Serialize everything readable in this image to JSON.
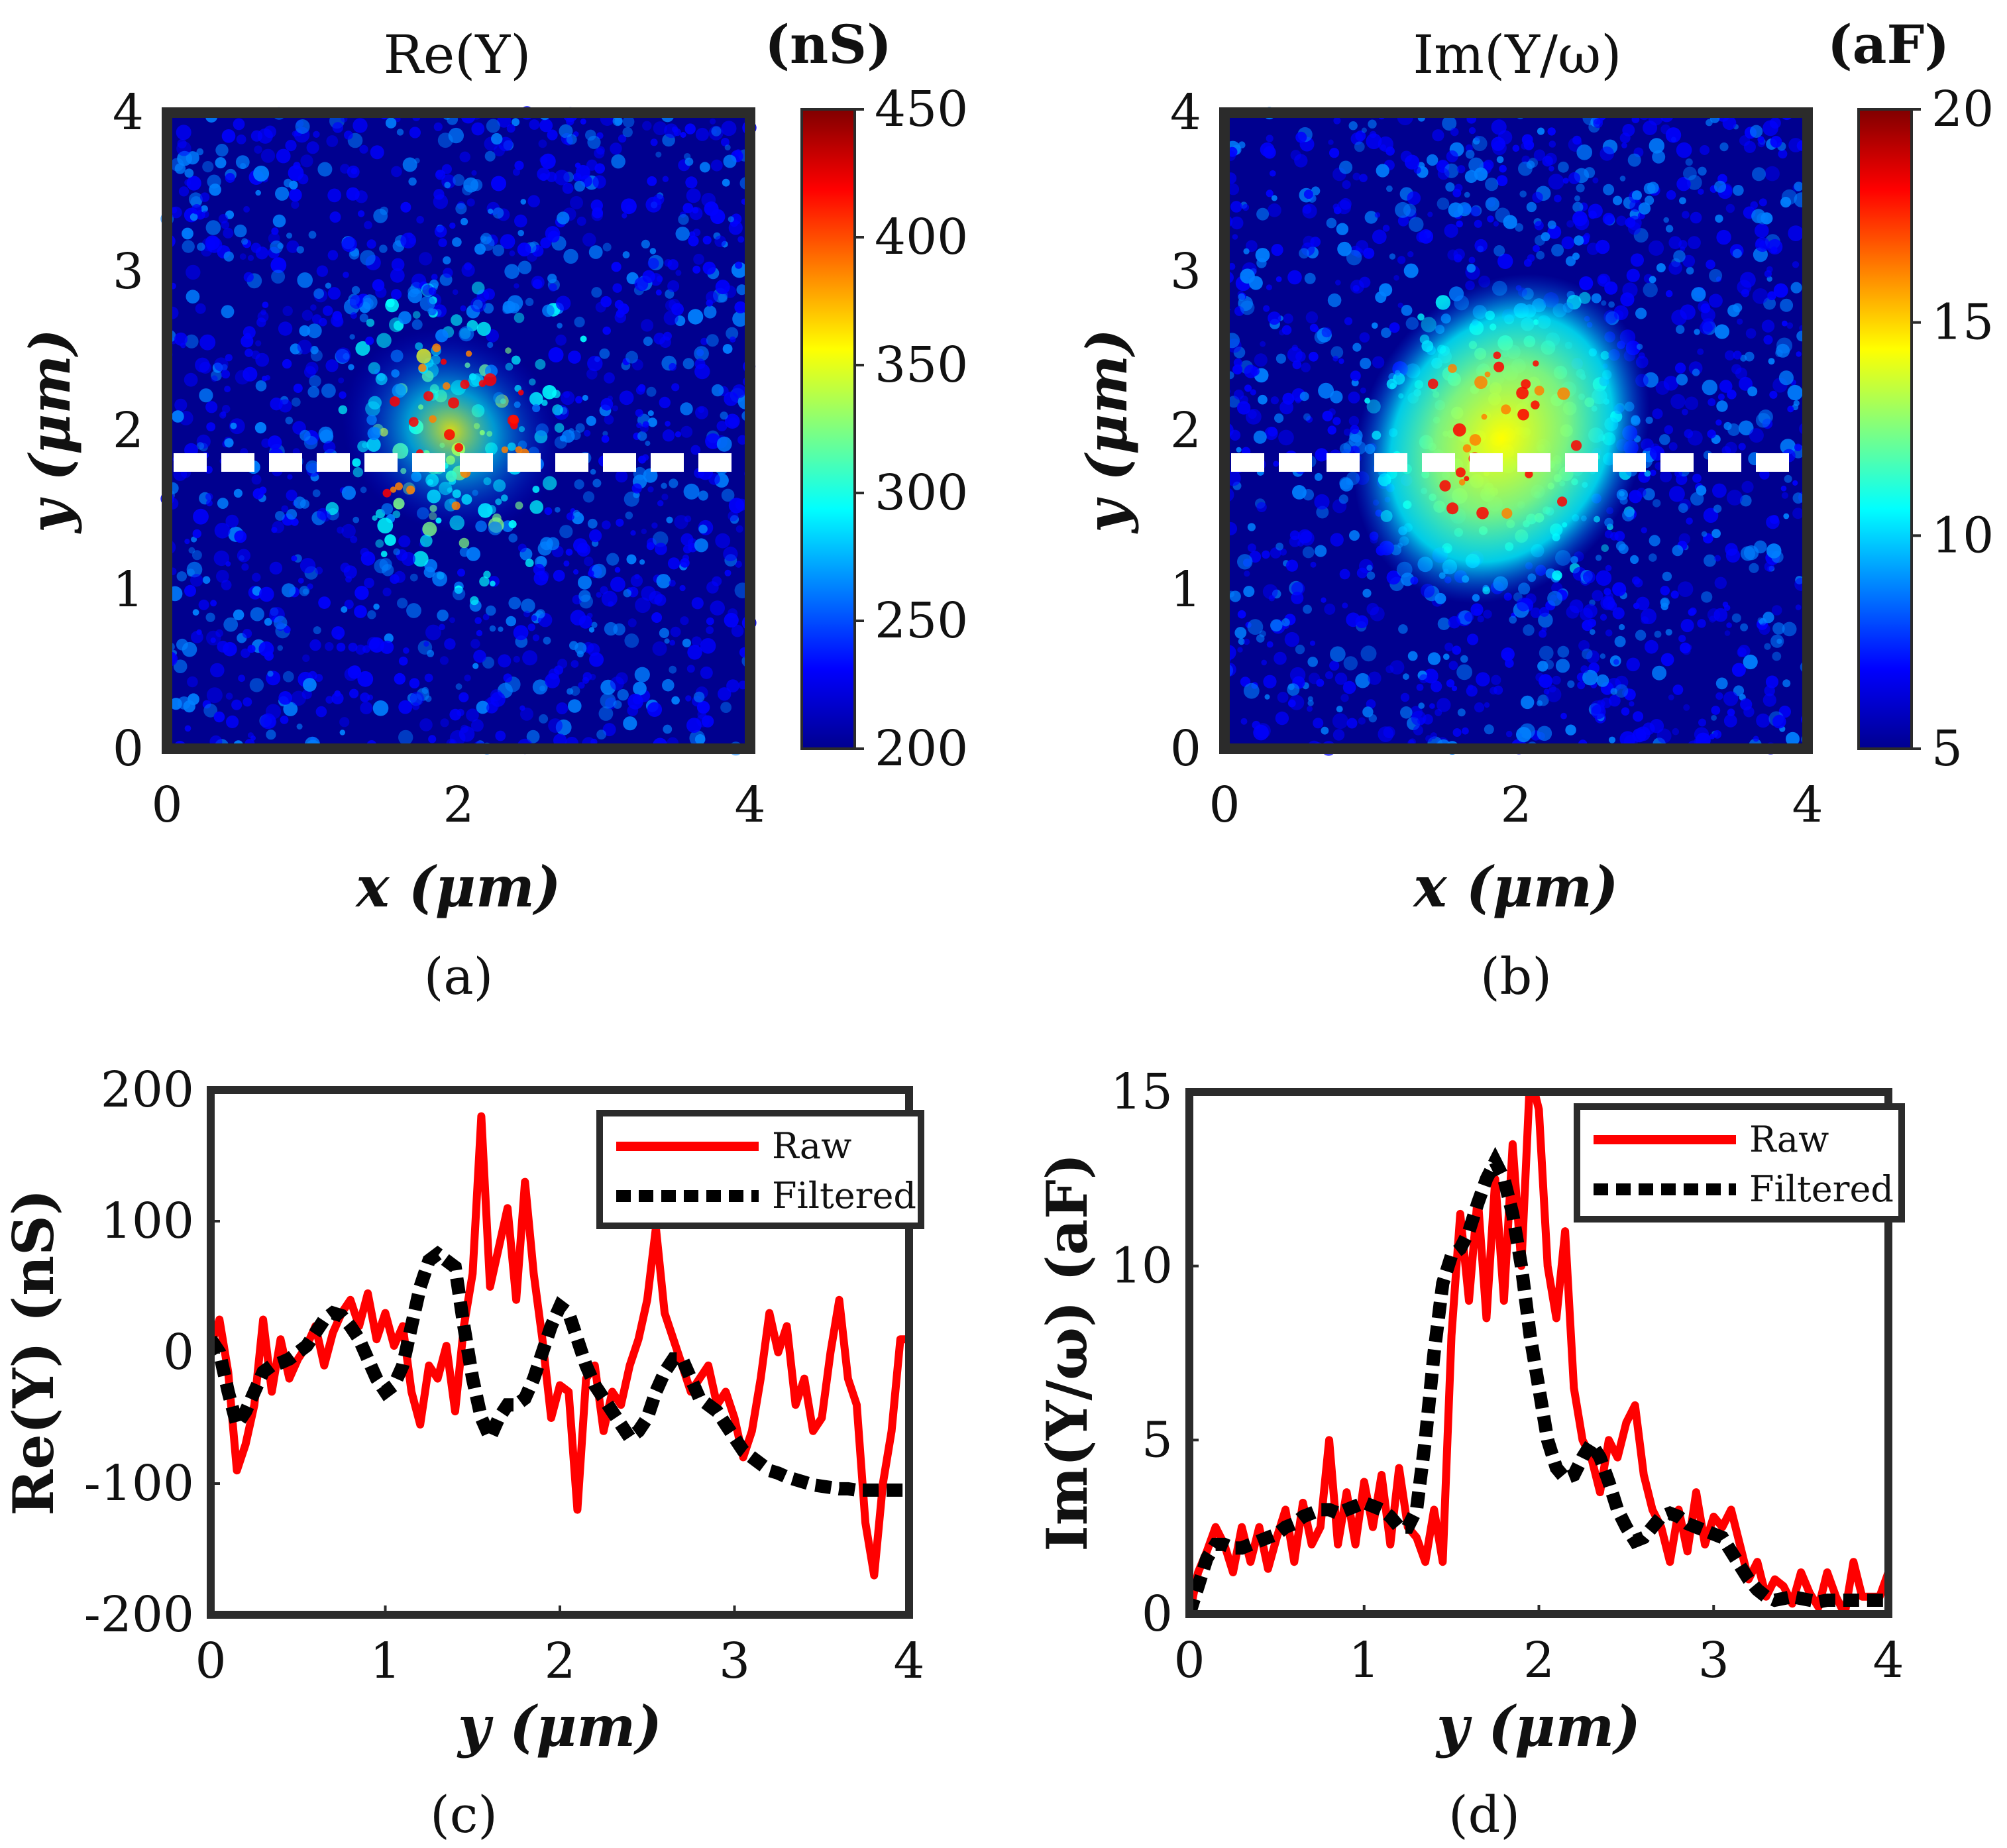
{
  "colors": {
    "frame": "#2b2b2b",
    "heatmap_background": "#00008f",
    "raw_line": "#ff0000",
    "filtered_line": "#000000",
    "cut_line": "#ffffff",
    "jet": [
      "#00008f",
      "#0000ff",
      "#0080ff",
      "#00ffff",
      "#80ff80",
      "#ffff00",
      "#ff8000",
      "#ff0000",
      "#800000"
    ]
  },
  "chart_data": [
    {
      "panel": "(a)",
      "type": "heatmap",
      "title": "Re(Y)",
      "xlabel": "x (μm)",
      "ylabel": "y (μm)",
      "xlim": [
        0,
        4
      ],
      "ylim": [
        0,
        4
      ],
      "xticks": [
        "0",
        "2",
        "4"
      ],
      "yticks": [
        "0",
        "1",
        "2",
        "3",
        "4"
      ],
      "colorbar": {
        "unit": "(nS)",
        "min": 200,
        "max": 450,
        "ticks": [
          "200",
          "250",
          "300",
          "350",
          "400",
          "450"
        ]
      },
      "dashed_cut_y": 1.75,
      "feature": {
        "description": "sparse bright cluster",
        "center_x": 1.95,
        "center_y": 2.0,
        "peak_value": 440
      }
    },
    {
      "panel": "(b)",
      "type": "heatmap",
      "title": "Im(Y/ω)",
      "xlabel": "x (μm)",
      "ylabel": "y (μm)",
      "xlim": [
        0,
        4
      ],
      "ylim": [
        0,
        4
      ],
      "xticks": [
        "0",
        "2",
        "4"
      ],
      "yticks": [
        "0",
        "1",
        "2",
        "3",
        "4"
      ],
      "colorbar": {
        "unit": "(aF)",
        "min": 5,
        "max": 20,
        "ticks": [
          "5",
          "10",
          "15",
          "20"
        ]
      },
      "dashed_cut_y": 1.75,
      "feature": {
        "description": "elongated bright blob",
        "center_x": 1.9,
        "center_y": 1.95,
        "peak_value": 19
      }
    },
    {
      "panel": "(c)",
      "type": "line",
      "xlabel": "y (μm)",
      "ylabel": "Re(Y) (nS)",
      "xlim": [
        0,
        4
      ],
      "ylim": [
        -200,
        200
      ],
      "xticks": [
        "0",
        "1",
        "2",
        "3",
        "4"
      ],
      "yticks": [
        "-200",
        "-100",
        "0",
        "100",
        "200"
      ],
      "legend": [
        "Raw",
        "Filtered"
      ],
      "x": [
        0,
        0.05,
        0.1,
        0.15,
        0.2,
        0.25,
        0.3,
        0.35,
        0.4,
        0.45,
        0.5,
        0.55,
        0.6,
        0.65,
        0.7,
        0.75,
        0.8,
        0.85,
        0.9,
        0.95,
        1.0,
        1.05,
        1.1,
        1.15,
        1.2,
        1.25,
        1.3,
        1.35,
        1.4,
        1.45,
        1.5,
        1.55,
        1.6,
        1.65,
        1.7,
        1.75,
        1.8,
        1.85,
        1.9,
        1.95,
        2.0,
        2.05,
        2.1,
        2.15,
        2.2,
        2.25,
        2.3,
        2.35,
        2.4,
        2.45,
        2.5,
        2.55,
        2.6,
        2.65,
        2.7,
        2.75,
        2.8,
        2.85,
        2.9,
        2.95,
        3.0,
        3.05,
        3.1,
        3.15,
        3.2,
        3.25,
        3.3,
        3.35,
        3.4,
        3.45,
        3.5,
        3.55,
        3.6,
        3.65,
        3.7,
        3.75,
        3.8,
        3.85,
        3.9,
        3.95,
        4.0
      ],
      "series": [
        {
          "name": "Raw",
          "values": [
            5,
            25,
            -15,
            -90,
            -70,
            -40,
            25,
            -30,
            10,
            -20,
            -5,
            5,
            20,
            -10,
            15,
            30,
            40,
            20,
            45,
            10,
            30,
            5,
            20,
            -30,
            -55,
            -10,
            -20,
            5,
            -45,
            20,
            60,
            180,
            50,
            80,
            110,
            40,
            130,
            60,
            10,
            -50,
            -25,
            -30,
            -120,
            -20,
            -10,
            -60,
            -30,
            -40,
            -10,
            10,
            40,
            95,
            30,
            10,
            -10,
            -30,
            -20,
            -10,
            -40,
            -30,
            -50,
            -80,
            -60,
            -20,
            30,
            0,
            20,
            -40,
            -20,
            -60,
            -50,
            0,
            40,
            -20,
            -40,
            -130,
            -170,
            -100,
            -60,
            10,
            10
          ]
        },
        {
          "name": "Filtered",
          "values": [
            10,
            0,
            -30,
            -55,
            -45,
            -30,
            -15,
            -10,
            -8,
            -5,
            0,
            5,
            15,
            25,
            30,
            28,
            20,
            10,
            -5,
            -20,
            -30,
            -25,
            -10,
            20,
            50,
            70,
            75,
            70,
            65,
            20,
            -20,
            -50,
            -65,
            -50,
            -40,
            -40,
            -35,
            -20,
            0,
            20,
            35,
            30,
            10,
            -10,
            -25,
            -35,
            -45,
            -55,
            -65,
            -60,
            -50,
            -30,
            -15,
            -5,
            -5,
            -20,
            -35,
            -40,
            -45,
            -55,
            -65,
            -75,
            -80,
            -85,
            -90,
            -92,
            -95,
            -97,
            -99,
            -101,
            -102,
            -103,
            -104,
            -104,
            -105,
            -105,
            -105,
            -105,
            -105,
            -105,
            -105
          ]
        }
      ]
    },
    {
      "panel": "(d)",
      "type": "line",
      "xlabel": "y (μm)",
      "ylabel": "Im(Y/ω) (aF)",
      "xlim": [
        0,
        4
      ],
      "ylim": [
        0,
        15
      ],
      "xticks": [
        "0",
        "1",
        "2",
        "3",
        "4"
      ],
      "yticks": [
        "0",
        "5",
        "10",
        "15"
      ],
      "legend": [
        "Raw",
        "Filtered"
      ],
      "x": [
        0,
        0.05,
        0.1,
        0.15,
        0.2,
        0.25,
        0.3,
        0.35,
        0.4,
        0.45,
        0.5,
        0.55,
        0.6,
        0.65,
        0.7,
        0.75,
        0.8,
        0.85,
        0.9,
        0.95,
        1.0,
        1.05,
        1.1,
        1.15,
        1.2,
        1.25,
        1.3,
        1.35,
        1.4,
        1.45,
        1.5,
        1.55,
        1.6,
        1.65,
        1.7,
        1.75,
        1.8,
        1.85,
        1.9,
        1.95,
        2.0,
        2.05,
        2.1,
        2.15,
        2.2,
        2.25,
        2.3,
        2.35,
        2.4,
        2.45,
        2.5,
        2.55,
        2.6,
        2.65,
        2.7,
        2.75,
        2.8,
        2.85,
        2.9,
        2.95,
        3.0,
        3.05,
        3.1,
        3.15,
        3.2,
        3.25,
        3.3,
        3.35,
        3.4,
        3.45,
        3.5,
        3.55,
        3.6,
        3.65,
        3.7,
        3.75,
        3.8,
        3.85,
        3.9,
        3.95,
        4.0
      ],
      "series": [
        {
          "name": "Raw",
          "values": [
            0,
            1.2,
            1.8,
            2.5,
            2.0,
            1.2,
            2.5,
            1.5,
            2.5,
            1.3,
            2.2,
            3.0,
            1.5,
            3.2,
            2.0,
            2.5,
            5.0,
            2.0,
            3.5,
            2.0,
            3.8,
            2.5,
            4.0,
            2.0,
            4.2,
            2.5,
            2.2,
            1.5,
            3.0,
            1.5,
            8.0,
            11.5,
            9.0,
            12.0,
            8.5,
            12.5,
            9.0,
            13.5,
            10.0,
            15.5,
            14.5,
            10.0,
            8.5,
            11.0,
            6.5,
            5.0,
            4.5,
            3.5,
            5.0,
            4.5,
            5.5,
            6.0,
            4.0,
            3.0,
            2.5,
            1.5,
            3.0,
            1.8,
            3.5,
            2.0,
            2.8,
            2.5,
            3.0,
            2.0,
            1.0,
            1.5,
            0.5,
            1.0,
            0.8,
            0.3,
            1.2,
            0.6,
            0.2,
            1.2,
            0.5,
            0,
            1.5,
            0.5,
            0.5,
            0.5,
            1.2
          ]
        },
        {
          "name": "Filtered",
          "values": [
            0,
            0.8,
            1.6,
            2.0,
            2.0,
            1.9,
            1.9,
            2.0,
            2.1,
            2.2,
            2.3,
            2.5,
            2.6,
            2.8,
            2.9,
            3.0,
            3.0,
            2.9,
            3.0,
            3.1,
            3.2,
            3.1,
            3.0,
            2.8,
            2.5,
            2.5,
            3.0,
            5.0,
            7.5,
            9.5,
            10.3,
            10.5,
            11.0,
            11.8,
            12.5,
            13.0,
            12.5,
            11.5,
            10.0,
            8.0,
            6.5,
            5.0,
            4.2,
            3.9,
            4.0,
            4.5,
            4.9,
            4.5,
            3.8,
            3.0,
            2.5,
            2.1,
            2.2,
            2.5,
            2.8,
            2.9,
            2.8,
            2.6,
            2.5,
            2.4,
            2.3,
            2.2,
            1.8,
            1.4,
            1.0,
            0.7,
            0.5,
            0.4,
            0.45,
            0.5,
            0.45,
            0.4,
            0.35,
            0.4,
            0.4,
            0.4,
            0.4,
            0.4,
            0.4,
            0.4,
            0.4
          ]
        }
      ]
    }
  ]
}
